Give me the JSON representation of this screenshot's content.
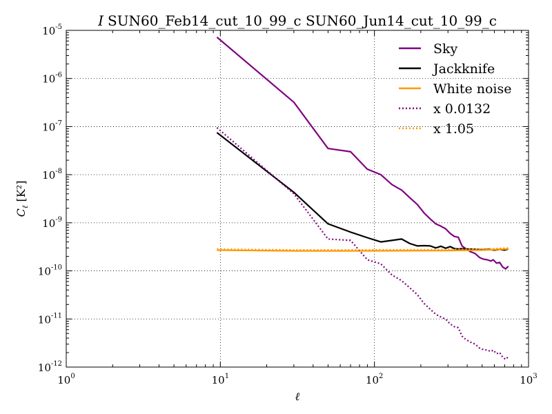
{
  "chart_data": {
    "type": "line",
    "title_prefix": "I",
    "title": "SUN60_Feb14_cut_10_99_c SUN60_Jun14_cut_10_99_c",
    "xlabel": "ℓ",
    "ylabel_main": "C",
    "ylabel_sub": "ℓ",
    "ylabel_unit": " [K²]",
    "xscale": "log",
    "yscale": "log",
    "xlim": [
      1,
      1000
    ],
    "ylim": [
      1e-12,
      1e-05
    ],
    "grid": true,
    "legend_position": "top-right",
    "x_ticks": [
      {
        "base": "10",
        "exp": "0",
        "value": 1
      },
      {
        "base": "10",
        "exp": "1",
        "value": 10
      },
      {
        "base": "10",
        "exp": "2",
        "value": 100
      },
      {
        "base": "10",
        "exp": "3",
        "value": 1000
      }
    ],
    "y_ticks": [
      {
        "base": "10",
        "exp": "-12",
        "value": 1e-12
      },
      {
        "base": "10",
        "exp": "-11",
        "value": 1e-11
      },
      {
        "base": "10",
        "exp": "-10",
        "value": 1e-10
      },
      {
        "base": "10",
        "exp": "-9",
        "value": 1e-09
      },
      {
        "base": "10",
        "exp": "-8",
        "value": 1e-08
      },
      {
        "base": "10",
        "exp": "-7",
        "value": 1e-07
      },
      {
        "base": "10",
        "exp": "-6",
        "value": 1e-06
      },
      {
        "base": "10",
        "exp": "-5",
        "value": 1e-05
      }
    ],
    "series": [
      {
        "name": "Sky",
        "color": "#800080",
        "style": "solid",
        "points": [
          [
            9.5,
            7.2e-06
          ],
          [
            30,
            3.2e-07
          ],
          [
            50,
            3.5e-08
          ],
          [
            70,
            3e-08
          ],
          [
            90,
            1.3e-08
          ],
          [
            110,
            1e-08
          ],
          [
            130,
            6.2e-09
          ],
          [
            150,
            4.8e-09
          ],
          [
            170,
            3.3e-09
          ],
          [
            190,
            2.4e-09
          ],
          [
            210,
            1.6e-09
          ],
          [
            230,
            1.2e-09
          ],
          [
            250,
            9.5e-10
          ],
          [
            270,
            8.5e-10
          ],
          [
            290,
            7.5e-10
          ],
          [
            310,
            6e-10
          ],
          [
            330,
            5.2e-10
          ],
          [
            350,
            5e-10
          ],
          [
            370,
            3.3e-10
          ],
          [
            390,
            2.9e-10
          ],
          [
            420,
            2.5e-10
          ],
          [
            450,
            2.3e-10
          ],
          [
            480,
            1.9e-10
          ],
          [
            510,
            1.75e-10
          ],
          [
            540,
            1.7e-10
          ],
          [
            570,
            1.6e-10
          ],
          [
            590,
            1.7e-10
          ],
          [
            620,
            1.45e-10
          ],
          [
            650,
            1.5e-10
          ],
          [
            680,
            1.2e-10
          ],
          [
            710,
            1.1e-10
          ],
          [
            740,
            1.25e-10
          ]
        ]
      },
      {
        "name": "Jackknife",
        "color": "#000000",
        "style": "solid",
        "points": [
          [
            9.5,
            7.5e-08
          ],
          [
            30,
            4.3e-09
          ],
          [
            50,
            9.5e-10
          ],
          [
            70,
            6.4e-10
          ],
          [
            90,
            4.9e-10
          ],
          [
            110,
            4e-10
          ],
          [
            130,
            4.3e-10
          ],
          [
            150,
            4.6e-10
          ],
          [
            170,
            3.7e-10
          ],
          [
            190,
            3.3e-10
          ],
          [
            210,
            3.35e-10
          ],
          [
            230,
            3.3e-10
          ],
          [
            250,
            3e-10
          ],
          [
            270,
            3.25e-10
          ],
          [
            290,
            2.95e-10
          ],
          [
            310,
            3.2e-10
          ],
          [
            330,
            2.9e-10
          ],
          [
            350,
            2.85e-10
          ],
          [
            370,
            2.9e-10
          ],
          [
            400,
            2.85e-10
          ],
          [
            450,
            2.8e-10
          ],
          [
            500,
            2.75e-10
          ],
          [
            550,
            2.8e-10
          ],
          [
            600,
            2.7e-10
          ],
          [
            650,
            2.8e-10
          ],
          [
            700,
            2.7e-10
          ],
          [
            740,
            2.85e-10
          ]
        ]
      },
      {
        "name": "White noise",
        "color": "#ff9800",
        "style": "solid",
        "points": [
          [
            9.5,
            2.7e-10
          ],
          [
            30,
            2.6e-10
          ],
          [
            70,
            2.6e-10
          ],
          [
            150,
            2.62e-10
          ],
          [
            300,
            2.65e-10
          ],
          [
            500,
            2.7e-10
          ],
          [
            740,
            2.85e-10
          ]
        ]
      },
      {
        "name": "x 0.0132",
        "color": "#800080",
        "style": "dotted",
        "points": [
          [
            9.5,
            9.5e-08
          ],
          [
            30,
            4e-09
          ],
          [
            50,
            4.6e-10
          ],
          [
            70,
            4.3e-10
          ],
          [
            90,
            1.7e-10
          ],
          [
            110,
            1.4e-10
          ],
          [
            130,
            8.2e-11
          ],
          [
            150,
            6.3e-11
          ],
          [
            170,
            4.4e-11
          ],
          [
            190,
            3.2e-11
          ],
          [
            210,
            2.1e-11
          ],
          [
            230,
            1.6e-11
          ],
          [
            250,
            1.25e-11
          ],
          [
            270,
            1.1e-11
          ],
          [
            290,
            9.9e-12
          ],
          [
            310,
            7.9e-12
          ],
          [
            330,
            6.9e-12
          ],
          [
            350,
            6.6e-12
          ],
          [
            370,
            4.4e-12
          ],
          [
            390,
            3.8e-12
          ],
          [
            420,
            3.3e-12
          ],
          [
            450,
            3e-12
          ],
          [
            480,
            2.5e-12
          ],
          [
            510,
            2.3e-12
          ],
          [
            540,
            2.25e-12
          ],
          [
            570,
            2.1e-12
          ],
          [
            590,
            2.25e-12
          ],
          [
            620,
            1.9e-12
          ],
          [
            650,
            2e-12
          ],
          [
            680,
            1.6e-12
          ],
          [
            710,
            1.45e-12
          ],
          [
            740,
            1.65e-12
          ]
        ]
      },
      {
        "name": "x 1.05",
        "color": "#ff9800",
        "style": "dotted",
        "points": [
          [
            9.5,
            2.84e-10
          ],
          [
            30,
            2.73e-10
          ],
          [
            70,
            2.73e-10
          ],
          [
            150,
            2.75e-10
          ],
          [
            300,
            2.78e-10
          ],
          [
            500,
            2.84e-10
          ],
          [
            740,
            2.99e-10
          ]
        ]
      }
    ]
  }
}
